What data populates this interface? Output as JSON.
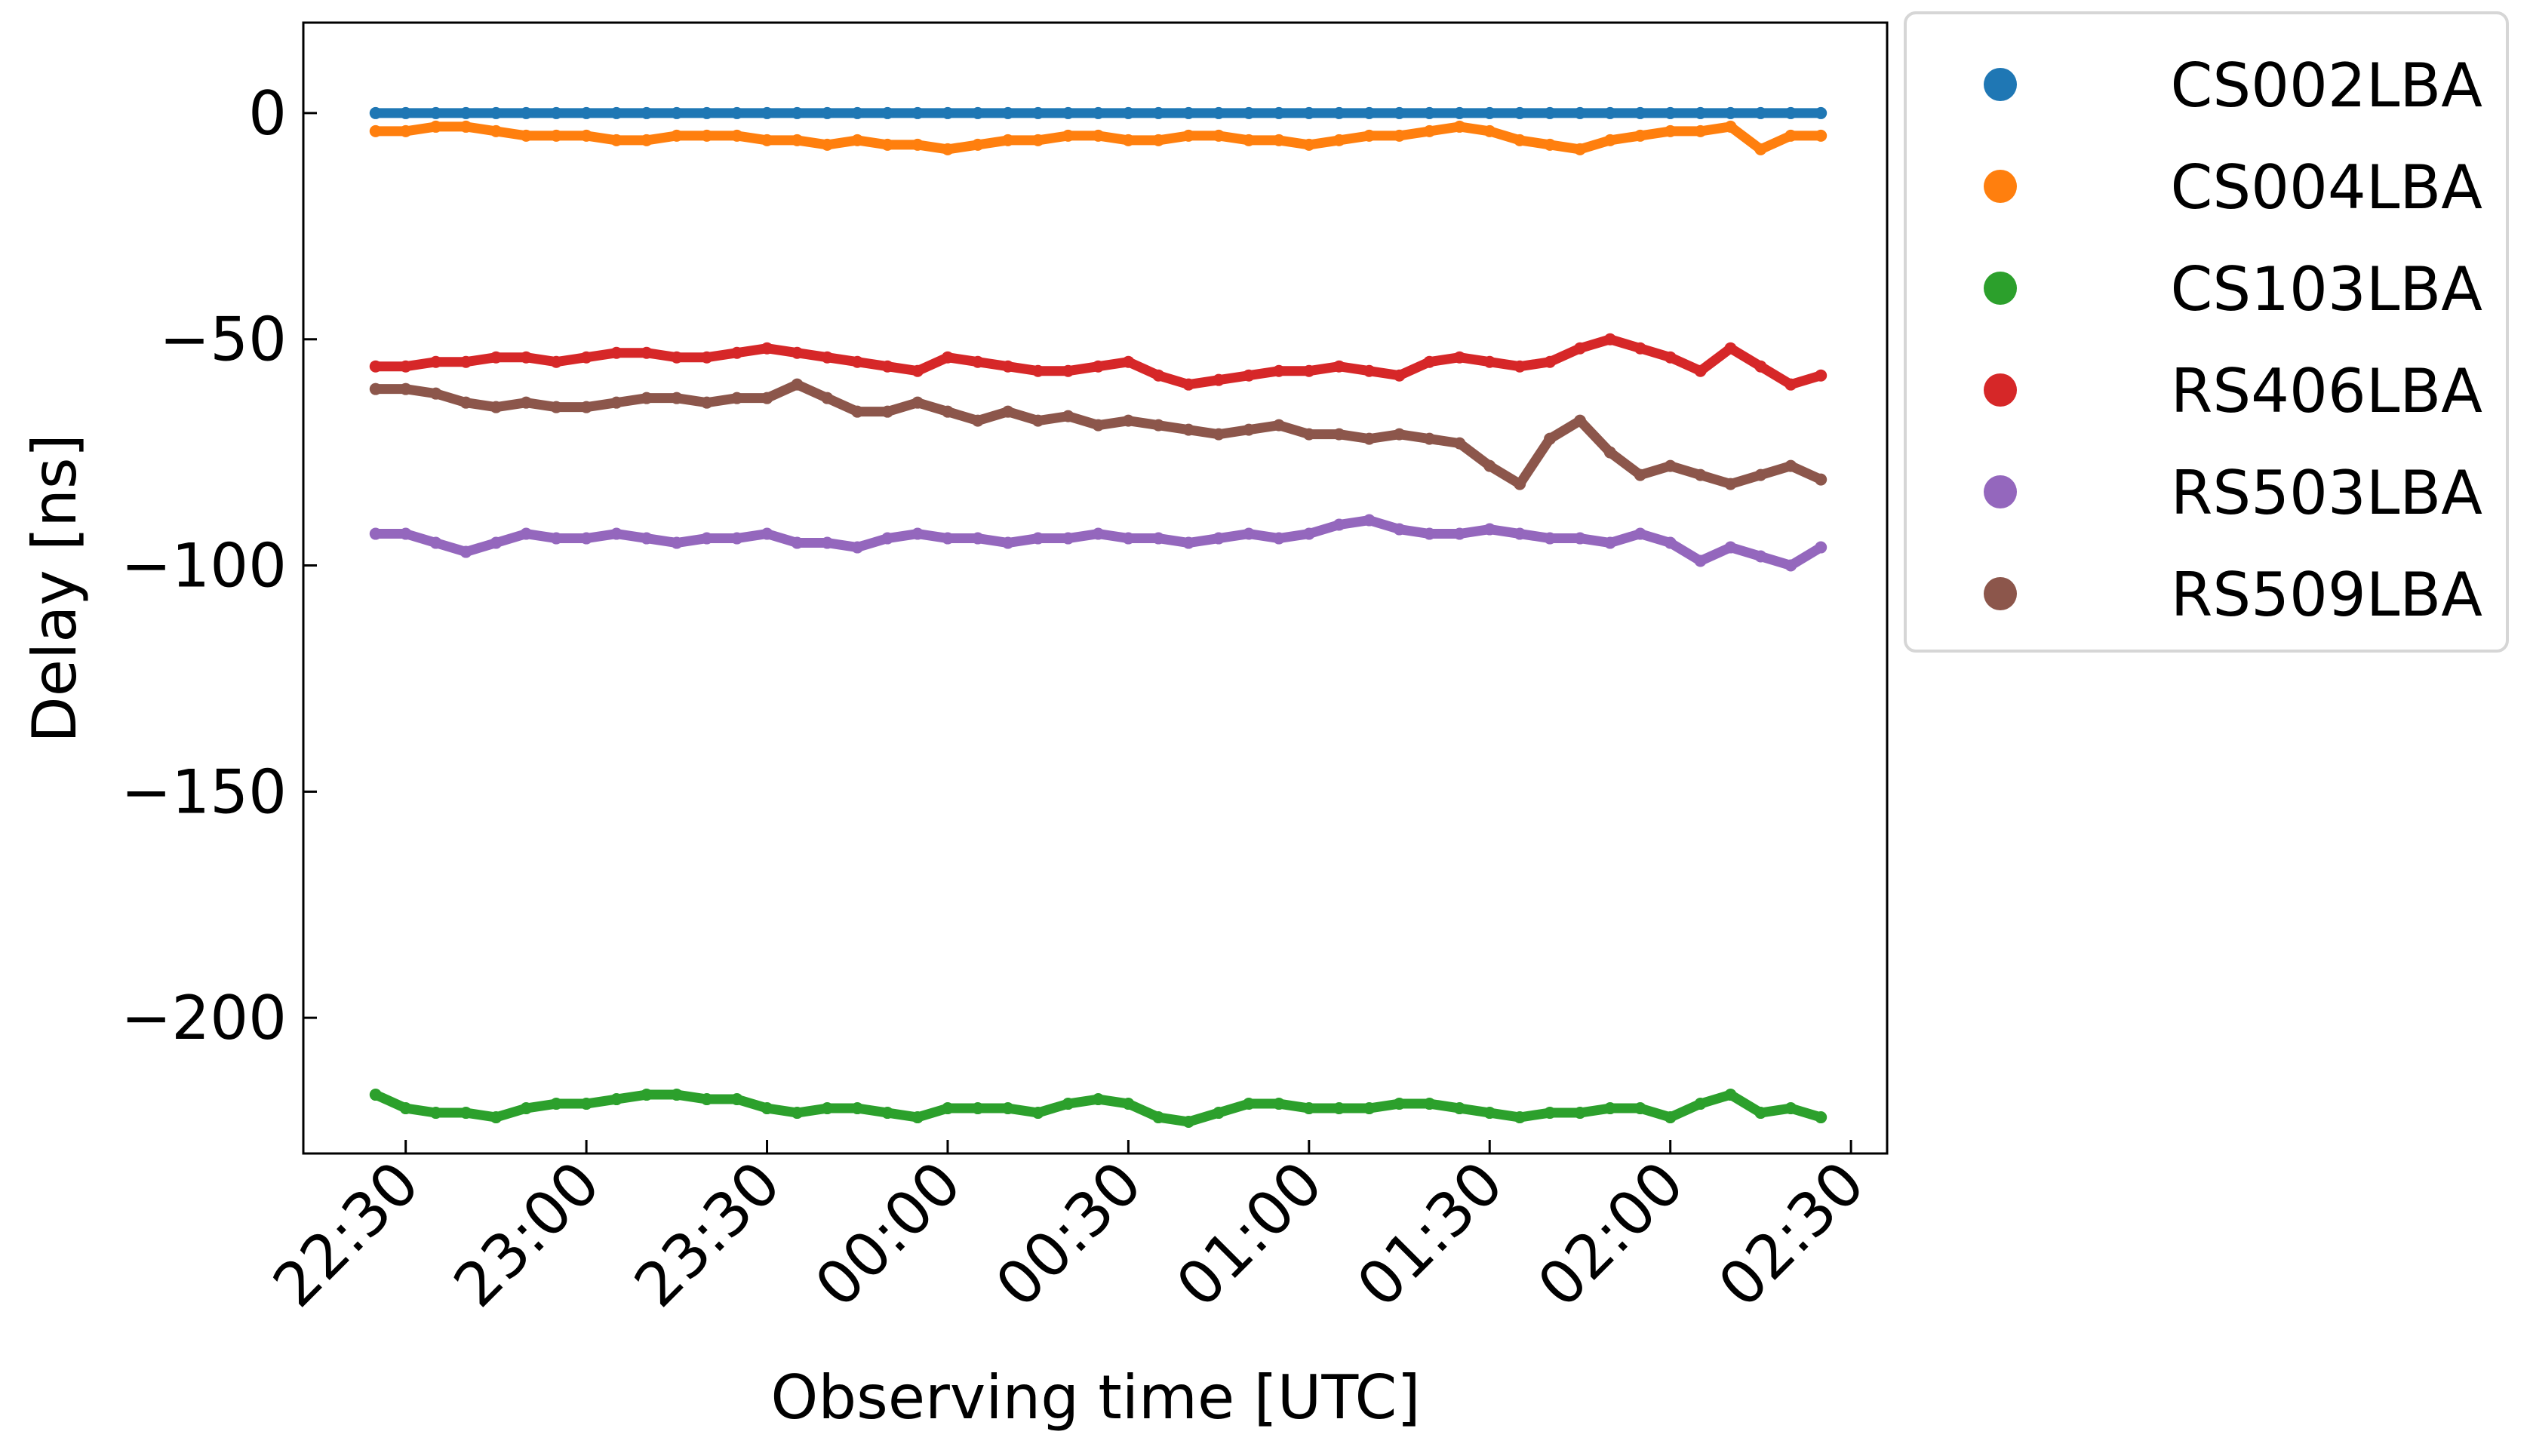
{
  "chart_data": {
    "type": "scatter",
    "xlabel": "Observing time [UTC]",
    "ylabel": "Delay [ns]",
    "ylim": [
      -230,
      20
    ],
    "xlim": [
      "22:13",
      "02:36"
    ],
    "yticks": [
      0,
      -50,
      -100,
      -150,
      -200
    ],
    "ytick_labels": [
      "0",
      "−50",
      "−100",
      "−150",
      "−200"
    ],
    "xtick_labels": [
      "22:30",
      "23:00",
      "23:30",
      "00:00",
      "00:30",
      "01:00",
      "01:30",
      "02:00",
      "02:30"
    ],
    "grid": false,
    "legend_position": "outside-right",
    "x_times": [
      "22:25",
      "22:30",
      "22:35",
      "22:40",
      "22:45",
      "22:50",
      "22:55",
      "23:00",
      "23:05",
      "23:10",
      "23:15",
      "23:20",
      "23:25",
      "23:30",
      "23:35",
      "23:40",
      "23:45",
      "23:50",
      "23:55",
      "00:00",
      "00:05",
      "00:10",
      "00:15",
      "00:20",
      "00:25",
      "00:30",
      "00:35",
      "00:40",
      "00:45",
      "00:50",
      "00:55",
      "01:00",
      "01:05",
      "01:10",
      "01:15",
      "01:20",
      "01:25",
      "01:30",
      "01:35",
      "01:40",
      "01:45",
      "01:50",
      "01:55",
      "02:00",
      "02:05",
      "02:10",
      "02:15",
      "02:20",
      "02:25"
    ],
    "series": [
      {
        "name": "CS002LBA",
        "color": "#1f77b4",
        "values": [
          0,
          0,
          0,
          0,
          0,
          0,
          0,
          0,
          0,
          0,
          0,
          0,
          0,
          0,
          0,
          0,
          0,
          0,
          0,
          0,
          0,
          0,
          0,
          0,
          0,
          0,
          0,
          0,
          0,
          0,
          0,
          0,
          0,
          0,
          0,
          0,
          0,
          0,
          0,
          0,
          0,
          0,
          0,
          0,
          0,
          0,
          0,
          0,
          0
        ]
      },
      {
        "name": "CS004LBA",
        "color": "#ff7f0e",
        "values": [
          -4,
          -4,
          -3,
          -3,
          -4,
          -5,
          -5,
          -5,
          -6,
          -6,
          -5,
          -5,
          -5,
          -6,
          -6,
          -7,
          -6,
          -7,
          -7,
          -8,
          -7,
          -6,
          -6,
          -5,
          -5,
          -6,
          -6,
          -5,
          -5,
          -6,
          -6,
          -7,
          -6,
          -5,
          -5,
          -4,
          -3,
          -4,
          -6,
          -7,
          -8,
          -6,
          -5,
          -4,
          -4,
          -3,
          -8,
          -5,
          -5
        ]
      },
      {
        "name": "CS103LBA",
        "color": "#2ca02c",
        "values": [
          -217,
          -220,
          -221,
          -221,
          -222,
          -220,
          -219,
          -219,
          -218,
          -217,
          -217,
          -218,
          -218,
          -220,
          -221,
          -220,
          -220,
          -221,
          -222,
          -220,
          -220,
          -220,
          -221,
          -219,
          -218,
          -219,
          -222,
          -223,
          -221,
          -219,
          -219,
          -220,
          -220,
          -220,
          -219,
          -219,
          -220,
          -221,
          -222,
          -221,
          -221,
          -220,
          -220,
          -222,
          -219,
          -217,
          -221,
          -220,
          -222
        ]
      },
      {
        "name": "RS406LBA",
        "color": "#d62728",
        "values": [
          -56,
          -56,
          -55,
          -55,
          -54,
          -54,
          -55,
          -54,
          -53,
          -53,
          -54,
          -54,
          -53,
          -52,
          -53,
          -54,
          -55,
          -56,
          -57,
          -54,
          -55,
          -56,
          -57,
          -57,
          -56,
          -55,
          -58,
          -60,
          -59,
          -58,
          -57,
          -57,
          -56,
          -57,
          -58,
          -55,
          -54,
          -55,
          -56,
          -55,
          -52,
          -50,
          -52,
          -54,
          -57,
          -52,
          -56,
          -60,
          -58
        ]
      },
      {
        "name": "RS503LBA",
        "color": "#9467bd",
        "values": [
          -93,
          -93,
          -95,
          -97,
          -95,
          -93,
          -94,
          -94,
          -93,
          -94,
          -95,
          -94,
          -94,
          -93,
          -95,
          -95,
          -96,
          -94,
          -93,
          -94,
          -94,
          -95,
          -94,
          -94,
          -93,
          -94,
          -94,
          -95,
          -94,
          -93,
          -94,
          -93,
          -91,
          -90,
          -92,
          -93,
          -93,
          -92,
          -93,
          -94,
          -94,
          -95,
          -93,
          -95,
          -99,
          -96,
          -98,
          -100,
          -96
        ]
      },
      {
        "name": "RS509LBA",
        "color": "#8c564b",
        "values": [
          -61,
          -61,
          -62,
          -64,
          -65,
          -64,
          -65,
          -65,
          -64,
          -63,
          -63,
          -64,
          -63,
          -63,
          -60,
          -63,
          -66,
          -66,
          -64,
          -66,
          -68,
          -66,
          -68,
          -67,
          -69,
          -68,
          -69,
          -70,
          -71,
          -70,
          -69,
          -71,
          -71,
          -72,
          -71,
          -72,
          -73,
          -78,
          -82,
          -72,
          -68,
          -75,
          -80,
          -78,
          -80,
          -82,
          -80,
          -78,
          -81
        ]
      }
    ]
  }
}
